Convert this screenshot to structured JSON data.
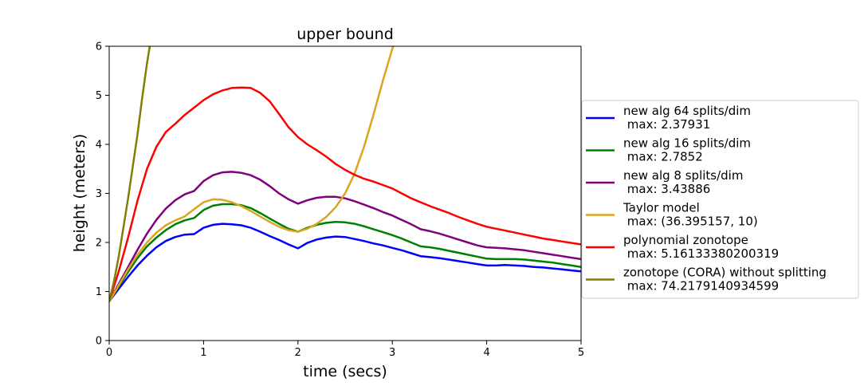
{
  "chart_data": {
    "type": "line",
    "title": "upper bound",
    "xlabel": "time (secs)",
    "ylabel": "height (meters)",
    "xlim": [
      0,
      5
    ],
    "ylim": [
      0,
      6
    ],
    "xticks": [
      0,
      1,
      2,
      3,
      4,
      5
    ],
    "yticks": [
      0,
      1,
      2,
      3,
      4,
      5,
      6
    ],
    "grid": false,
    "legend": "right",
    "series": [
      {
        "name": "new alg 64 splits/dim\n max: 2.37931",
        "color": "#0000ff",
        "x": [
          0,
          0.1,
          0.2,
          0.3,
          0.4,
          0.5,
          0.6,
          0.7,
          0.8,
          0.9,
          1.0,
          1.1,
          1.2,
          1.3,
          1.4,
          1.5,
          1.6,
          1.7,
          1.8,
          1.9,
          2.0,
          2.1,
          2.2,
          2.3,
          2.4,
          2.5,
          2.6,
          2.7,
          2.8,
          2.9,
          3.0,
          3.1,
          3.2,
          3.3,
          3.4,
          3.5,
          3.6,
          3.7,
          3.8,
          3.9,
          4.0,
          4.1,
          4.2,
          4.3,
          4.4,
          4.5,
          4.6,
          4.7,
          4.8,
          4.9,
          5.0
        ],
        "y": [
          0.8,
          1.05,
          1.3,
          1.53,
          1.73,
          1.9,
          2.03,
          2.11,
          2.16,
          2.17,
          2.3,
          2.36,
          2.38,
          2.37,
          2.35,
          2.3,
          2.22,
          2.13,
          2.05,
          1.96,
          1.88,
          1.99,
          2.06,
          2.1,
          2.12,
          2.11,
          2.07,
          2.03,
          1.98,
          1.94,
          1.89,
          1.84,
          1.78,
          1.72,
          1.7,
          1.68,
          1.65,
          1.62,
          1.59,
          1.56,
          1.53,
          1.53,
          1.54,
          1.53,
          1.52,
          1.5,
          1.49,
          1.47,
          1.45,
          1.43,
          1.41
        ]
      },
      {
        "name": "new alg 16 splits/dim\n max: 2.7852",
        "color": "#008000",
        "x": [
          0,
          0.1,
          0.2,
          0.3,
          0.4,
          0.5,
          0.6,
          0.7,
          0.8,
          0.9,
          1.0,
          1.1,
          1.2,
          1.3,
          1.4,
          1.5,
          1.6,
          1.7,
          1.8,
          1.9,
          2.0,
          2.1,
          2.2,
          2.3,
          2.4,
          2.5,
          2.6,
          2.7,
          2.8,
          2.9,
          3.0,
          3.1,
          3.2,
          3.3,
          3.4,
          3.5,
          3.6,
          3.7,
          3.8,
          3.9,
          4.0,
          4.1,
          4.2,
          4.3,
          4.4,
          4.5,
          4.6,
          4.7,
          4.8,
          4.9,
          5.0
        ],
        "y": [
          0.8,
          1.1,
          1.4,
          1.68,
          1.92,
          2.1,
          2.25,
          2.37,
          2.45,
          2.5,
          2.66,
          2.75,
          2.78,
          2.78,
          2.76,
          2.7,
          2.6,
          2.49,
          2.38,
          2.28,
          2.22,
          2.3,
          2.36,
          2.4,
          2.42,
          2.41,
          2.38,
          2.33,
          2.27,
          2.21,
          2.15,
          2.08,
          2.0,
          1.92,
          1.9,
          1.87,
          1.83,
          1.79,
          1.75,
          1.71,
          1.67,
          1.66,
          1.66,
          1.66,
          1.65,
          1.63,
          1.61,
          1.59,
          1.56,
          1.53,
          1.5
        ]
      },
      {
        "name": "new alg 8 splits/dim\n max: 3.43886",
        "color": "#800080",
        "x": [
          0,
          0.1,
          0.2,
          0.3,
          0.4,
          0.5,
          0.6,
          0.7,
          0.8,
          0.9,
          1.0,
          1.1,
          1.2,
          1.3,
          1.4,
          1.5,
          1.6,
          1.7,
          1.8,
          1.9,
          2.0,
          2.1,
          2.2,
          2.3,
          2.4,
          2.5,
          2.6,
          2.7,
          2.8,
          2.9,
          3.0,
          3.1,
          3.2,
          3.3,
          3.4,
          3.5,
          3.6,
          3.7,
          3.8,
          3.9,
          4.0,
          4.1,
          4.2,
          4.3,
          4.4,
          4.5,
          4.6,
          4.7,
          4.8,
          4.9,
          5.0
        ],
        "y": [
          0.8,
          1.15,
          1.5,
          1.85,
          2.18,
          2.46,
          2.69,
          2.86,
          2.98,
          3.05,
          3.25,
          3.37,
          3.43,
          3.44,
          3.42,
          3.37,
          3.28,
          3.15,
          3.0,
          2.88,
          2.79,
          2.86,
          2.91,
          2.93,
          2.93,
          2.9,
          2.84,
          2.77,
          2.7,
          2.62,
          2.55,
          2.46,
          2.37,
          2.27,
          2.23,
          2.18,
          2.12,
          2.06,
          2.0,
          1.94,
          1.9,
          1.89,
          1.88,
          1.86,
          1.84,
          1.81,
          1.78,
          1.75,
          1.72,
          1.69,
          1.66
        ]
      },
      {
        "name": "Taylor model\n max: (36.395157, 10)",
        "color": "#daa520",
        "x": [
          0,
          0.1,
          0.2,
          0.3,
          0.4,
          0.5,
          0.6,
          0.7,
          0.8,
          0.9,
          1.0,
          1.1,
          1.2,
          1.3,
          1.4,
          1.5,
          1.6,
          1.7,
          1.8,
          1.9,
          2.0,
          2.1,
          2.2,
          2.3,
          2.4,
          2.5,
          2.6,
          2.7,
          2.8,
          2.9,
          3.0,
          3.02
        ],
        "y": [
          0.8,
          1.12,
          1.45,
          1.75,
          2.0,
          2.2,
          2.35,
          2.45,
          2.53,
          2.68,
          2.82,
          2.88,
          2.87,
          2.82,
          2.74,
          2.64,
          2.53,
          2.42,
          2.32,
          2.25,
          2.22,
          2.28,
          2.38,
          2.52,
          2.72,
          3.0,
          3.4,
          3.95,
          4.6,
          5.3,
          5.95,
          6.05
        ]
      },
      {
        "name": "polynomial zonotope\n max: 5.16133380200319",
        "color": "#ff0000",
        "x": [
          0,
          0.1,
          0.2,
          0.3,
          0.4,
          0.5,
          0.6,
          0.7,
          0.8,
          0.9,
          1.0,
          1.1,
          1.2,
          1.3,
          1.4,
          1.5,
          1.6,
          1.7,
          1.8,
          1.9,
          2.0,
          2.1,
          2.2,
          2.3,
          2.4,
          2.5,
          2.6,
          2.7,
          2.8,
          2.9,
          3.0,
          3.1,
          3.2,
          3.3,
          3.4,
          3.5,
          3.6,
          3.7,
          3.8,
          3.9,
          4.0,
          4.1,
          4.2,
          4.3,
          4.4,
          4.5,
          4.6,
          4.7,
          4.8,
          4.9,
          5.0
        ],
        "y": [
          0.8,
          1.4,
          2.1,
          2.85,
          3.5,
          3.95,
          4.25,
          4.42,
          4.6,
          4.75,
          4.9,
          5.02,
          5.1,
          5.15,
          5.16,
          5.15,
          5.05,
          4.88,
          4.62,
          4.35,
          4.15,
          4.0,
          3.88,
          3.75,
          3.6,
          3.48,
          3.38,
          3.3,
          3.24,
          3.17,
          3.1,
          3.0,
          2.9,
          2.82,
          2.74,
          2.67,
          2.6,
          2.52,
          2.45,
          2.38,
          2.32,
          2.28,
          2.24,
          2.2,
          2.16,
          2.12,
          2.08,
          2.05,
          2.02,
          1.99,
          1.96
        ]
      },
      {
        "name": "zonotope (CORA) without splitting\n max: 74.2179140934599",
        "color": "#808000",
        "x": [
          0,
          0.05,
          0.1,
          0.15,
          0.2,
          0.25,
          0.3,
          0.35,
          0.4,
          0.43,
          0.44
        ],
        "y": [
          0.8,
          1.2,
          1.7,
          2.3,
          2.9,
          3.55,
          4.2,
          4.95,
          5.65,
          6.0,
          6.1
        ]
      }
    ]
  }
}
